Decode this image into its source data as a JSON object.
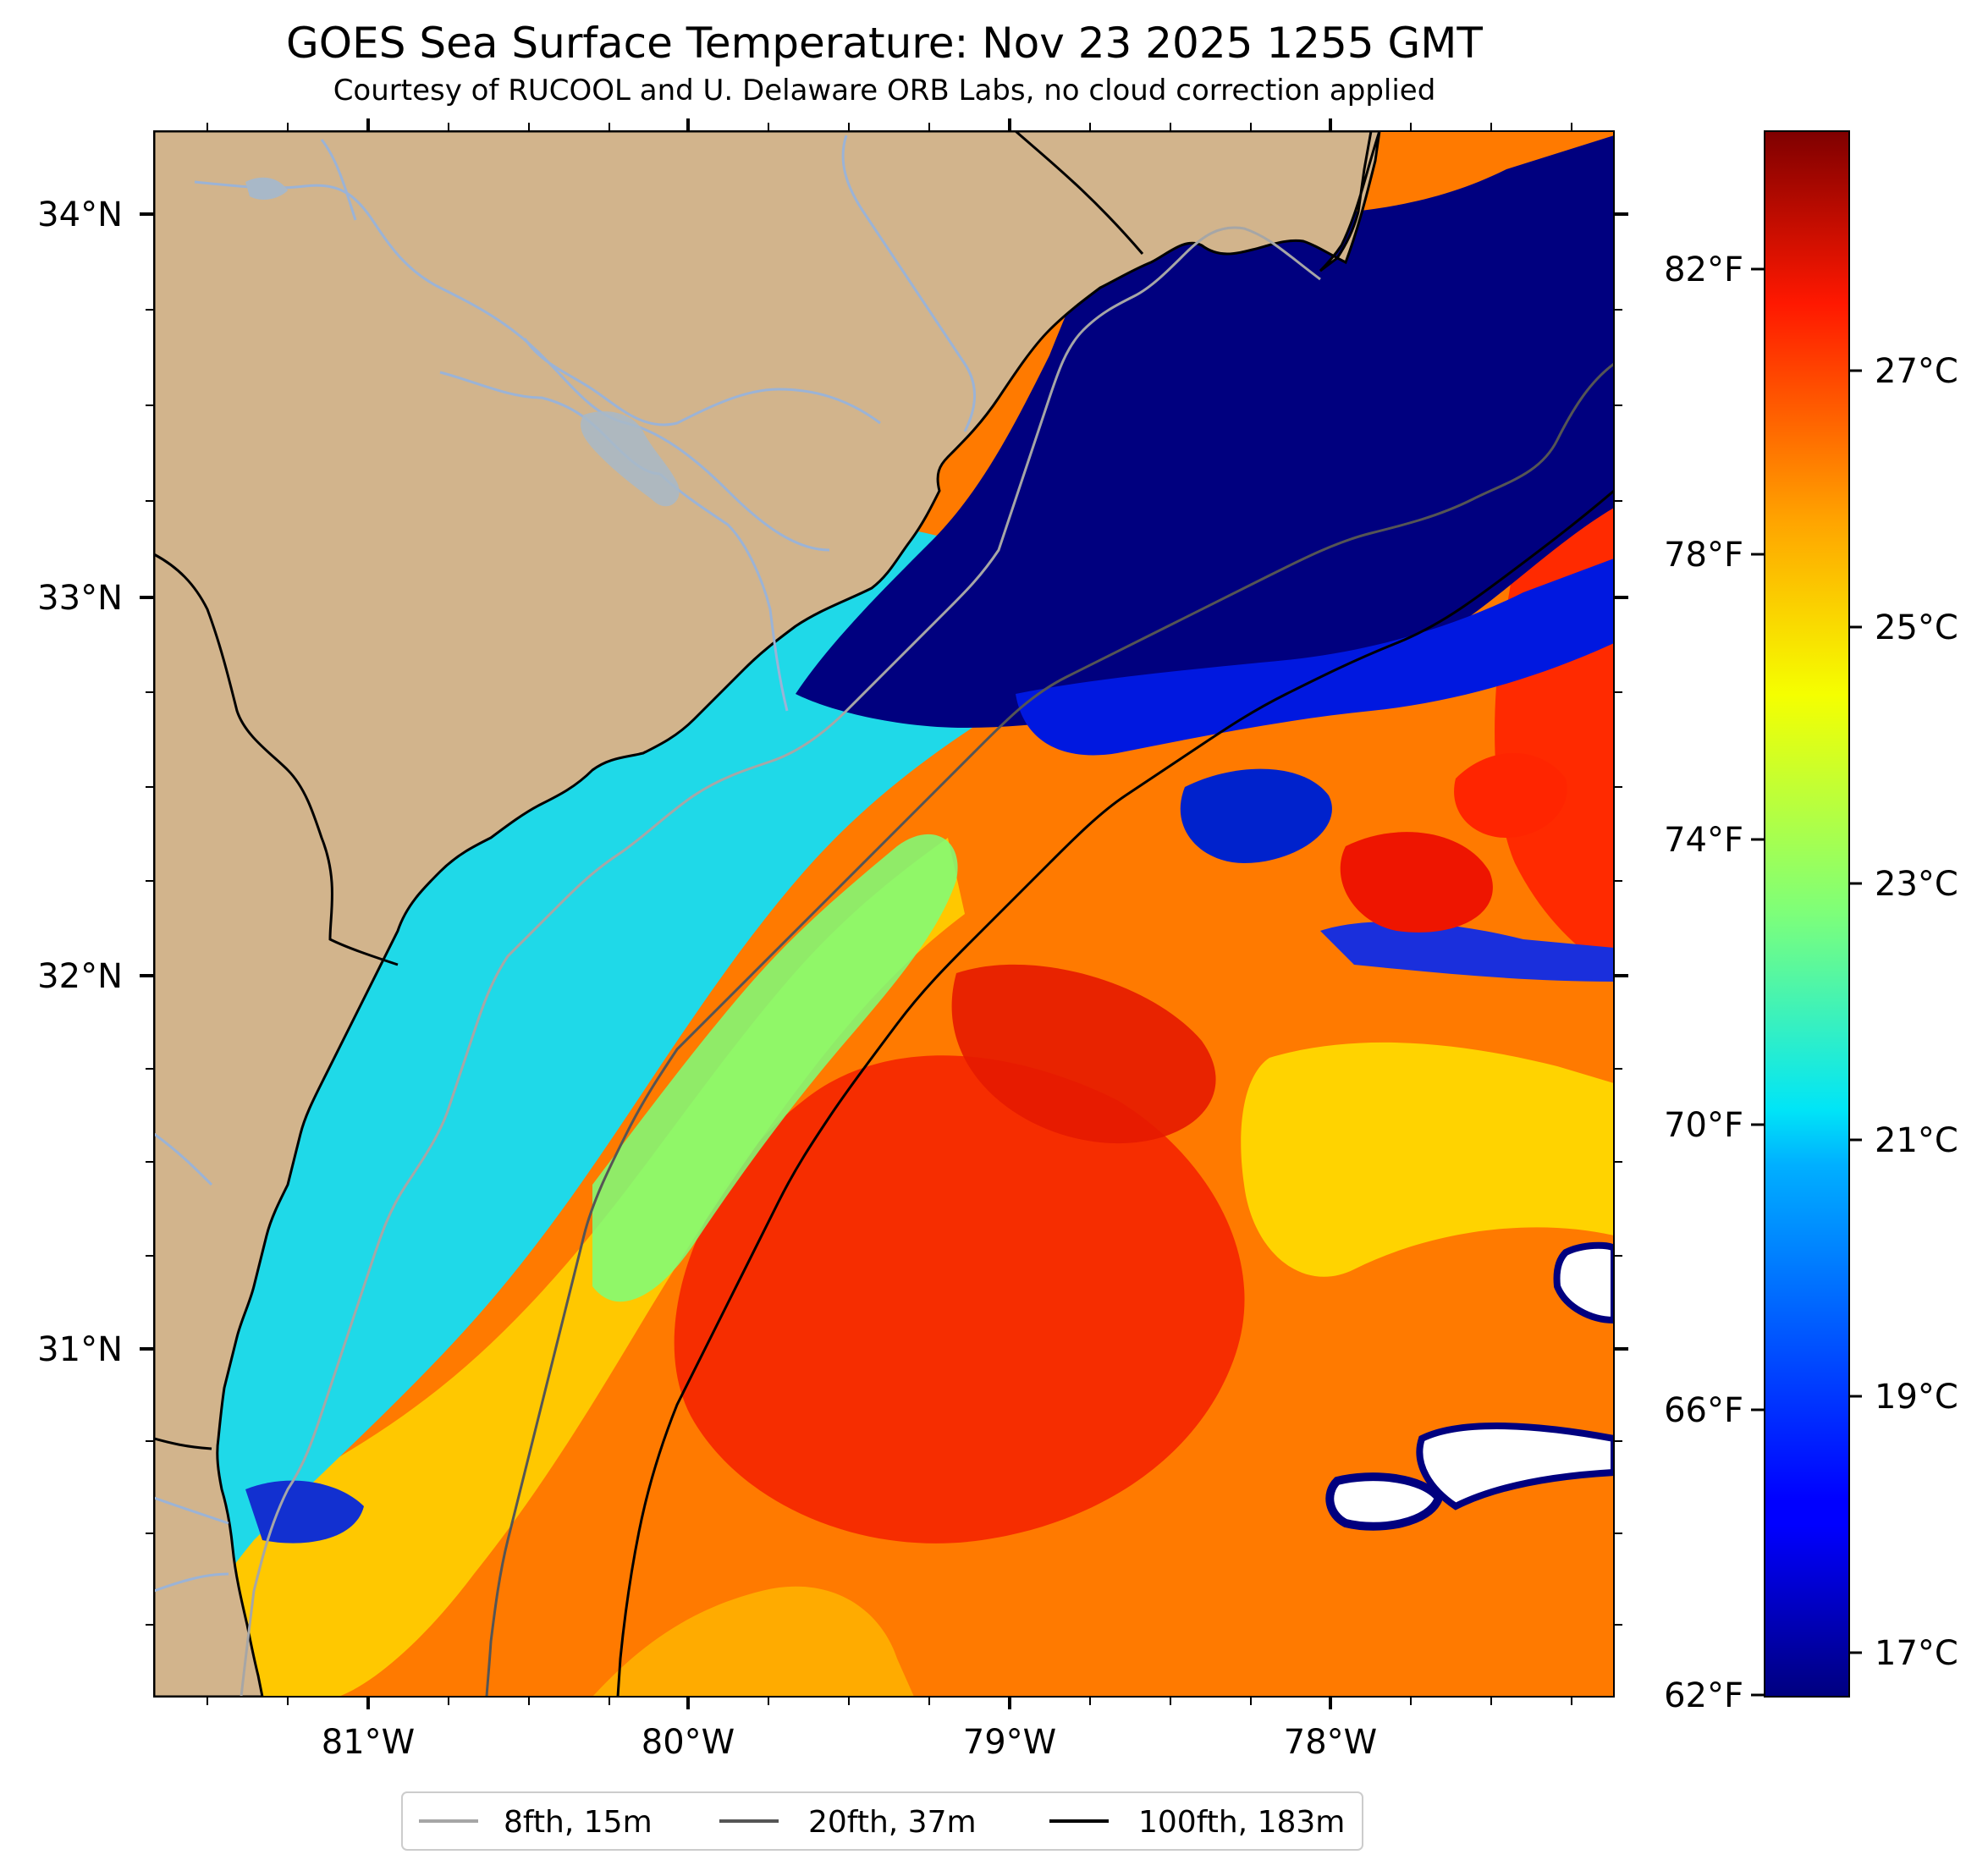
{
  "header": {
    "title": "GOES Sea Surface Temperature: Nov 23 2025 1255 GMT",
    "subtitle": "Courtesy of RUCOOL and U. Delaware ORB Labs, no cloud correction applied"
  },
  "map": {
    "lon_ticks": [
      "81°W",
      "80°W",
      "79°W",
      "78°W"
    ],
    "lat_ticks": [
      "34°N",
      "33°N",
      "32°N",
      "31°N"
    ],
    "land_color": "#d2b48c",
    "river_color": "#9bb3d6"
  },
  "colorbar": {
    "celsius_ticks": [
      "27°C",
      "25°C",
      "23°C",
      "21°C",
      "19°C",
      "17°C"
    ],
    "fahrenheit_ticks": [
      "82°F",
      "78°F",
      "74°F",
      "70°F",
      "66°F",
      "62°F"
    ],
    "colormap": "jet"
  },
  "legend": {
    "items": [
      {
        "label": "8fth, 15m",
        "color": "#a6a6a6"
      },
      {
        "label": "20fth, 37m",
        "color": "#555555"
      },
      {
        "label": "100fth, 183m",
        "color": "#000000"
      }
    ]
  }
}
